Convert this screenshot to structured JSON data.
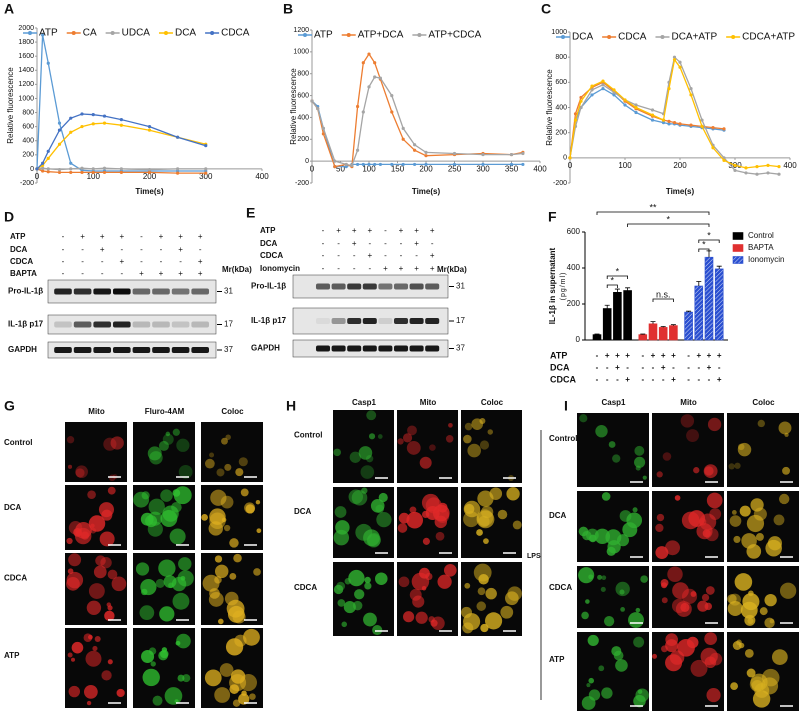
{
  "chart_data": [
    {
      "label": "A",
      "type": "line",
      "y_label": "Relative fluorescence",
      "x_label": "Time(s)",
      "x": [
        0,
        10,
        20,
        40,
        60,
        80,
        100,
        120,
        150,
        200,
        250,
        300
      ],
      "xlim": [
        0,
        400
      ],
      "xticks": [
        0,
        100,
        200,
        300,
        400
      ],
      "ylim": [
        -200,
        2000
      ],
      "yticks": [
        -200,
        0,
        200,
        400,
        600,
        800,
        1000,
        1200,
        1400,
        1600,
        1800,
        2000
      ],
      "series": [
        {
          "name": "ATP",
          "color": "#5b9bd5",
          "values": [
            0,
            1900,
            1500,
            650,
            80,
            -20,
            -30,
            -30,
            -30,
            -30,
            -30,
            -30
          ]
        },
        {
          "name": "CA",
          "color": "#ed7d31",
          "values": [
            0,
            -30,
            -40,
            -50,
            -50,
            -50,
            -50,
            -50,
            -50,
            -50,
            -60,
            -60
          ]
        },
        {
          "name": "UDCA",
          "color": "#a5a5a5",
          "values": [
            0,
            10,
            0,
            -10,
            0,
            10,
            0,
            10,
            0,
            -10,
            0,
            0
          ]
        },
        {
          "name": "DCA",
          "color": "#ffc000",
          "values": [
            0,
            50,
            150,
            350,
            520,
            600,
            640,
            650,
            620,
            550,
            450,
            350
          ]
        },
        {
          "name": "CDCA",
          "color": "#4472c4",
          "values": [
            0,
            80,
            250,
            550,
            720,
            780,
            770,
            750,
            700,
            600,
            450,
            330
          ]
        }
      ]
    },
    {
      "label": "B",
      "type": "line",
      "y_label": "Relative fluorescence",
      "x_label": "Time(s)",
      "x": [
        0,
        10,
        20,
        40,
        60,
        70,
        80,
        90,
        100,
        110,
        120,
        140,
        160,
        180,
        200,
        250,
        300,
        350,
        370
      ],
      "xlim": [
        0,
        400
      ],
      "xticks": [
        0,
        50,
        100,
        150,
        200,
        250,
        300,
        350,
        400
      ],
      "ylim": [
        -200,
        1200
      ],
      "yticks": [
        -200,
        0,
        200,
        400,
        600,
        800,
        1000,
        1200
      ],
      "series": [
        {
          "name": "ATP",
          "color": "#5b9bd5",
          "values": [
            550,
            500,
            300,
            -50,
            -50,
            -30,
            -30,
            -30,
            -30,
            -30,
            -30,
            -30,
            -30,
            -30,
            -30,
            -30,
            -30,
            -30,
            -30
          ]
        },
        {
          "name": "ATP+DCA",
          "color": "#ed7d31",
          "values": [
            550,
            480,
            250,
            -50,
            -30,
            -50,
            500,
            900,
            980,
            900,
            750,
            450,
            200,
            100,
            50,
            60,
            70,
            60,
            80
          ]
        },
        {
          "name": "ATP+CDCA",
          "color": "#a5a5a5",
          "values": [
            550,
            480,
            300,
            0,
            -30,
            -40,
            100,
            450,
            680,
            770,
            760,
            600,
            300,
            150,
            80,
            70,
            60,
            60,
            70
          ]
        }
      ]
    },
    {
      "label": "C",
      "type": "line",
      "y_label": "Relative fluorescence",
      "x_label": "Time(s)",
      "x": [
        0,
        10,
        20,
        40,
        60,
        80,
        100,
        120,
        150,
        170,
        180,
        190,
        200,
        220,
        240,
        260,
        280,
        300,
        320,
        340,
        360,
        380
      ],
      "xlim": [
        0,
        400
      ],
      "xticks": [
        0,
        100,
        200,
        300,
        400
      ],
      "ylim": [
        -200,
        1000
      ],
      "yticks": [
        -200,
        0,
        200,
        400,
        600,
        800,
        1000
      ],
      "series": [
        {
          "name": "DCA",
          "color": "#5b9bd5",
          "values": [
            0,
            300,
            400,
            500,
            550,
            500,
            420,
            360,
            300,
            280,
            270,
            270,
            260,
            250,
            240,
            230,
            220,
            null,
            null,
            null,
            null,
            null
          ]
        },
        {
          "name": "CDCA",
          "color": "#ed7d31",
          "values": [
            0,
            350,
            480,
            560,
            600,
            530,
            450,
            390,
            330,
            300,
            290,
            280,
            270,
            260,
            250,
            240,
            230,
            null,
            null,
            null,
            null,
            null
          ]
        },
        {
          "name": "DCA+ATP",
          "color": "#a5a5a5",
          "values": [
            0,
            250,
            400,
            540,
            580,
            520,
            460,
            420,
            380,
            350,
            600,
            800,
            760,
            550,
            300,
            100,
            0,
            -100,
            -120,
            -130,
            -120,
            -130
          ]
        },
        {
          "name": "CDCA+ATP",
          "color": "#ffc000",
          "values": [
            0,
            300,
            450,
            570,
            610,
            540,
            460,
            400,
            340,
            300,
            550,
            780,
            720,
            500,
            250,
            80,
            -20,
            -60,
            -80,
            -70,
            -60,
            -70
          ]
        }
      ]
    },
    {
      "label": "F",
      "type": "bar",
      "y_label": "IL-1β in supernatant",
      "y_unit": "(pg/ml)",
      "ylim": [
        0,
        600
      ],
      "yticks": [
        0,
        200,
        400,
        600
      ],
      "series": [
        {
          "name": "Control",
          "color": "#000000",
          "values": [
            30,
            175,
            265,
            275
          ],
          "errors": [
            3,
            18,
            18,
            15
          ]
        },
        {
          "name": "BAPTA",
          "color": "#e03030",
          "values": [
            30,
            90,
            70,
            80
          ],
          "errors": [
            3,
            12,
            5,
            5
          ]
        },
        {
          "name": "Ionomycin",
          "color": "#2a4fd0",
          "pattern": "hatch",
          "values": [
            155,
            300,
            460,
            395
          ],
          "errors": [
            5,
            25,
            35,
            15
          ]
        }
      ],
      "conditions": [
        {
          "name": "ATP",
          "signs": [
            "-",
            "+",
            "+",
            "+",
            "-",
            "+",
            "+",
            "+",
            "-",
            "+",
            "+",
            "+"
          ]
        },
        {
          "name": "DCA",
          "signs": [
            "-",
            "-",
            "+",
            "-",
            "-",
            "-",
            "+",
            "-",
            "-",
            "-",
            "+",
            "-"
          ]
        },
        {
          "name": "CDCA",
          "signs": [
            "-",
            "-",
            "-",
            "+",
            "-",
            "-",
            "-",
            "+",
            "-",
            "-",
            "-",
            "+"
          ]
        }
      ],
      "annotations": [
        "**",
        "*",
        "*",
        "*",
        "*",
        "*",
        "n.s."
      ]
    }
  ],
  "blots": [
    {
      "label": "D",
      "unit": "Mr(kDa)",
      "rows": [
        {
          "name": "ATP",
          "signs": [
            "-",
            "+",
            "+",
            "+",
            "-",
            "+",
            "+",
            "+"
          ]
        },
        {
          "name": "DCA",
          "signs": [
            "-",
            "-",
            "+",
            "-",
            "-",
            "-",
            "+",
            "-"
          ]
        },
        {
          "name": "CDCA",
          "signs": [
            "-",
            "-",
            "-",
            "+",
            "-",
            "-",
            "-",
            "+"
          ]
        },
        {
          "name": "BAPTA",
          "signs": [
            "-",
            "-",
            "-",
            "-",
            "+",
            "+",
            "+",
            "+"
          ]
        }
      ],
      "bands": [
        {
          "name": "Pro-IL-1β",
          "kda": 31
        },
        {
          "name": "IL-1β p17",
          "kda": 17
        },
        {
          "name": "GAPDH",
          "kda": 37
        }
      ]
    },
    {
      "label": "E",
      "unit": "Mr(kDa)",
      "rows": [
        {
          "name": "ATP",
          "signs": [
            "-",
            "+",
            "+",
            "+",
            "-",
            "+",
            "+",
            "+"
          ]
        },
        {
          "name": "DCA",
          "signs": [
            "-",
            "-",
            "+",
            "-",
            "-",
            "-",
            "+",
            "-"
          ]
        },
        {
          "name": "CDCA",
          "signs": [
            "-",
            "-",
            "-",
            "+",
            "-",
            "-",
            "-",
            "+"
          ]
        },
        {
          "name": "Ionomycin",
          "signs": [
            "-",
            "-",
            "-",
            "-",
            "+",
            "+",
            "+",
            "+"
          ]
        }
      ],
      "bands": [
        {
          "name": "Pro-IL-1β",
          "kda": 31
        },
        {
          "name": "IL-1β p17",
          "kda": 17
        },
        {
          "name": "GAPDH",
          "kda": 37
        }
      ]
    }
  ],
  "micrographs": [
    {
      "label": "G",
      "columns": [
        "Mito",
        "Fluro-4AM",
        "Coloc"
      ],
      "rows": [
        "Control",
        "DCA",
        "CDCA",
        "ATP"
      ]
    },
    {
      "label": "H",
      "columns": [
        "Casp1",
        "Mito",
        "Coloc"
      ],
      "rows": [
        "Control",
        "DCA",
        "CDCA"
      ]
    },
    {
      "label": "I",
      "group": "LPS",
      "columns": [
        "Casp1",
        "Mito",
        "Coloc"
      ],
      "rows": [
        "Control",
        "DCA",
        "CDCA",
        "ATP"
      ]
    }
  ]
}
